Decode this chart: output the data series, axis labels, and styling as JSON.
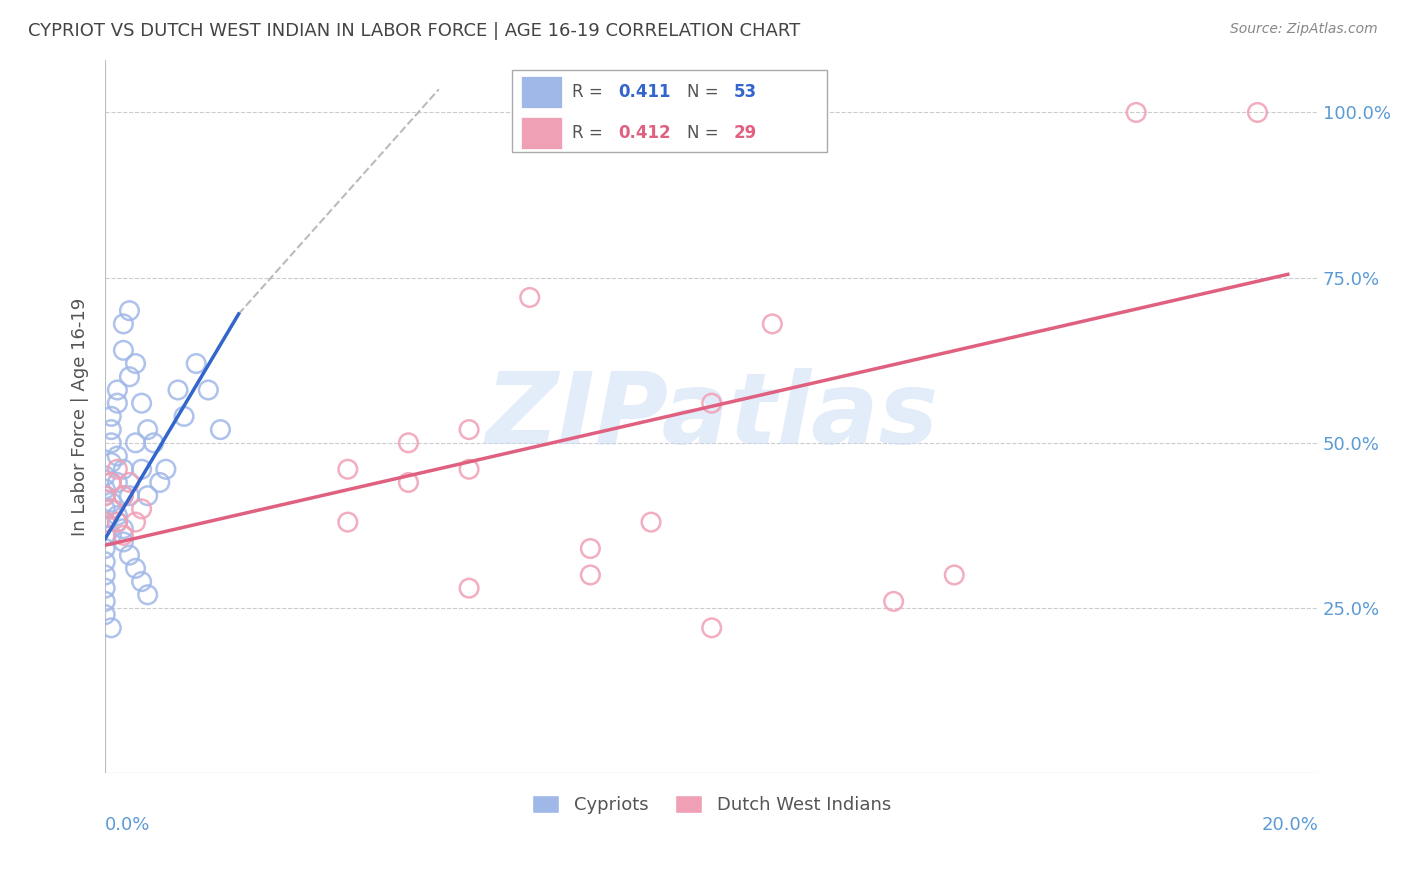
{
  "title": "CYPRIOT VS DUTCH WEST INDIAN IN LABOR FORCE | AGE 16-19 CORRELATION CHART",
  "source": "Source: ZipAtlas.com",
  "ylabel": "In Labor Force | Age 16-19",
  "xlim": [
    0.0,
    0.2
  ],
  "ylim": [
    0.0,
    1.08
  ],
  "yticks": [
    0.0,
    0.25,
    0.5,
    0.75,
    1.0
  ],
  "ytick_labels": [
    "",
    "25.0%",
    "50.0%",
    "75.0%",
    "100.0%"
  ],
  "cypriot_color": "#a0b8e8",
  "dutch_color": "#f0a0b4",
  "cypriot_line_color": "#3366cc",
  "dutch_line_color": "#e06080",
  "background_color": "#ffffff",
  "grid_color": "#cccccc",
  "title_color": "#444444",
  "axis_label_color": "#5b9bd5",
  "watermark": "ZIPatlas",
  "cypriot_scatter_x": [
    0.0,
    0.0,
    0.0,
    0.0,
    0.0,
    0.0,
    0.0,
    0.0,
    0.0,
    0.0,
    0.001,
    0.001,
    0.001,
    0.001,
    0.001,
    0.001,
    0.001,
    0.002,
    0.002,
    0.002,
    0.002,
    0.002,
    0.003,
    0.003,
    0.003,
    0.003,
    0.004,
    0.004,
    0.004,
    0.005,
    0.005,
    0.006,
    0.006,
    0.007,
    0.007,
    0.008,
    0.009,
    0.01,
    0.012,
    0.013,
    0.015,
    0.017,
    0.019,
    0.0,
    0.0,
    0.001,
    0.001,
    0.002,
    0.003,
    0.003,
    0.004,
    0.005,
    0.006,
    0.007
  ],
  "cypriot_scatter_y": [
    0.38,
    0.4,
    0.42,
    0.36,
    0.34,
    0.32,
    0.3,
    0.28,
    0.26,
    0.24,
    0.5,
    0.52,
    0.54,
    0.44,
    0.4,
    0.36,
    0.22,
    0.56,
    0.58,
    0.48,
    0.44,
    0.38,
    0.64,
    0.68,
    0.46,
    0.42,
    0.7,
    0.6,
    0.42,
    0.62,
    0.5,
    0.56,
    0.46,
    0.52,
    0.42,
    0.5,
    0.44,
    0.46,
    0.58,
    0.54,
    0.62,
    0.58,
    0.52,
    0.45,
    0.43,
    0.47,
    0.41,
    0.39,
    0.37,
    0.35,
    0.33,
    0.31,
    0.29,
    0.27
  ],
  "dutch_scatter_x": [
    0.0,
    0.0,
    0.001,
    0.001,
    0.002,
    0.002,
    0.003,
    0.003,
    0.004,
    0.005,
    0.006,
    0.04,
    0.05,
    0.05,
    0.06,
    0.06,
    0.07,
    0.08,
    0.09,
    0.1,
    0.11,
    0.13,
    0.14,
    0.17,
    0.19,
    0.04,
    0.06,
    0.08,
    0.1
  ],
  "dutch_scatter_y": [
    0.42,
    0.38,
    0.44,
    0.4,
    0.46,
    0.38,
    0.42,
    0.36,
    0.44,
    0.38,
    0.4,
    0.46,
    0.5,
    0.44,
    0.52,
    0.46,
    0.72,
    0.3,
    0.38,
    0.56,
    0.68,
    0.26,
    0.3,
    1.0,
    1.0,
    0.38,
    0.28,
    0.34,
    0.22
  ],
  "cypriot_line_x0": 0.0,
  "cypriot_line_y0": 0.355,
  "cypriot_line_x1": 0.022,
  "cypriot_line_y1": 0.695,
  "dutch_line_x0": 0.0,
  "dutch_line_y0": 0.345,
  "dutch_line_x1": 0.195,
  "dutch_line_y1": 0.755,
  "dash_line_x0": 0.022,
  "dash_line_y0": 0.695,
  "dash_line_x1": 0.055,
  "dash_line_y1": 1.035,
  "legend_label1": "Cypriots",
  "legend_label2": "Dutch West Indians"
}
